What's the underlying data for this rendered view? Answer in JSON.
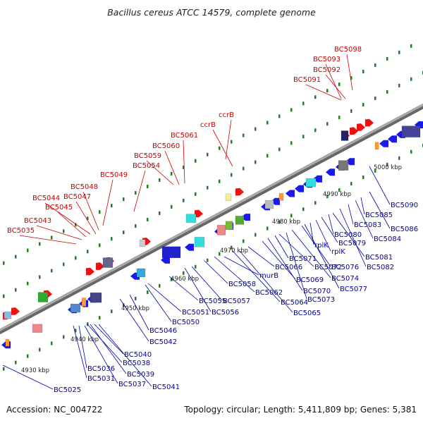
{
  "title": "Bacillus cereus ATCC 14579, complete genome",
  "footer": {
    "accession": "Accession: NC_004722",
    "summary": "Topology: circular; Length: 5,411,809 bp; Genes: 5,381"
  },
  "colors": {
    "top_label": "#cc0000",
    "bottom_label": "#0000aa",
    "backbone": "#888888",
    "gene_blue": "#1a1aee",
    "gene_red": "#ee1111",
    "tick": "#2a7a2a"
  },
  "scale_labels": [
    "4930 kbp",
    "4940 kbp",
    "4950 kbp",
    "4960 kbp",
    "4970 kbp",
    "4980 kbp",
    "4990 kbp",
    "5000 kbp"
  ],
  "top_genes": [
    "BC5035",
    "BC5043",
    "BC5045",
    "BC5044",
    "BC5047",
    "BC5048",
    "BC5049",
    "BC5054",
    "BC5059",
    "BC5060",
    "BC5061",
    "ccrB",
    "ccrB",
    "BC5091",
    "BC5092",
    "BC5093",
    "BC5098"
  ],
  "bottom_genes": [
    "BC5025",
    "BC5031",
    "BC5036",
    "BC5037",
    "BC5038",
    "BC5039",
    "BC5040",
    "BC5041",
    "BC5042",
    "BC5046",
    "BC5050",
    "BC5051",
    "BC5055",
    "BC5056",
    "BC5057",
    "BC5058",
    "BC5062",
    "murB",
    "BC5064",
    "BC5065",
    "BC5066",
    "BC5069",
    "BC5070",
    "BC5071",
    "BC5072",
    "BC5073",
    "BC5074",
    "BC5076",
    "BC5077",
    "rplK",
    "rplK",
    "BC5079",
    "BC5080",
    "BC5081",
    "BC5082",
    "BC5083",
    "BC5084",
    "BC5085",
    "BC5086",
    "BC5090"
  ]
}
